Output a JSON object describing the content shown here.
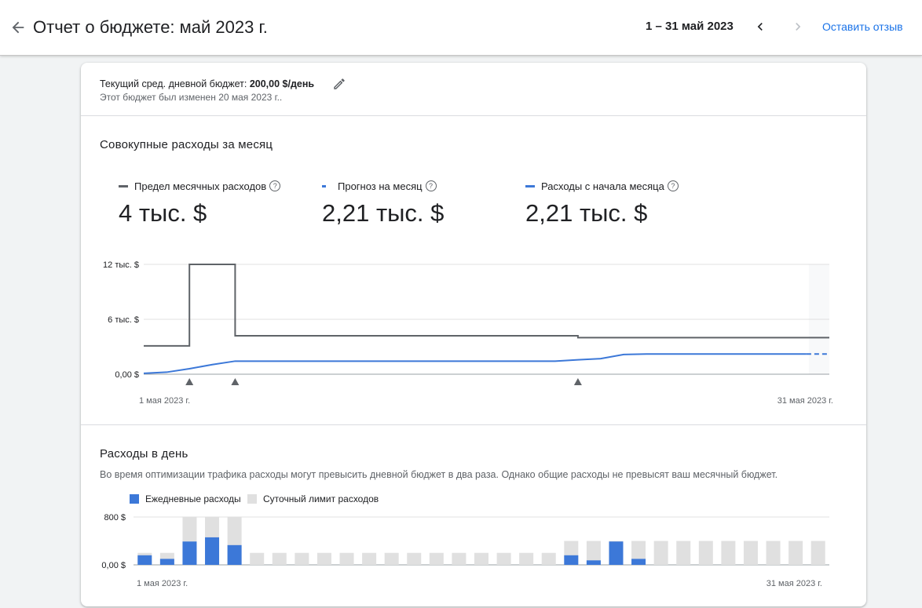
{
  "header": {
    "title": "Отчет о бюджете: май 2023 г.",
    "date_range": "1 – 31 май 2023",
    "feedback_label": "Оставить отзыв",
    "back_icon": "arrow-left-icon",
    "prev_icon": "chevron-left-icon",
    "next_icon": "chevron-right-icon"
  },
  "left_edge_glyph": ")",
  "budget": {
    "label": "Текущий сред. дневной бюджет: ",
    "value": "200,00 $/день",
    "changed_note": "Этот бюджет был изменен 20 мая 2023 г..",
    "edit_icon": "pencil-icon"
  },
  "cumulative": {
    "title": "Совокупные расходы за месяц",
    "metrics": [
      {
        "label": "Предел месячных расходов",
        "value": "4 тыс. $",
        "color": "#5f6368",
        "style": "solid"
      },
      {
        "label": "Прогноз на месяц",
        "value": "2,21 тыс. $",
        "color": "#3c78d8",
        "style": "dash"
      },
      {
        "label": "Расходы с начала месяца",
        "value": "2,21 тыс. $",
        "color": "#3c78d8",
        "style": "solid"
      }
    ]
  },
  "daily": {
    "title": "Расходы в день",
    "description": "Во время оптимизации трафика расходы могут превысить дневной бюджет в два раза. Однако общие расходы не превысят ваш месячный бюджет.",
    "legend": [
      {
        "label": "Ежедневные расходы",
        "color": "#3c78d8"
      },
      {
        "label": "Суточный лимит расходов",
        "color": "#e0e0e0"
      }
    ]
  },
  "colors": {
    "limit_line": "#5f6368",
    "spend_line": "#3c78d8",
    "limit_bar": "#e0e0e0",
    "spend_bar": "#3c78d8",
    "link": "#1a73e8"
  },
  "chart_data": [
    {
      "type": "line",
      "title": "Совокупные расходы за месяц",
      "x_start_label": "1 мая 2023 г.",
      "x_end_label": "31 мая 2023 г.",
      "y_tick_labels": [
        "0,00 $",
        "6 тыс. $",
        "12 тыс. $"
      ],
      "y_ticks": [
        0,
        6000,
        12000
      ],
      "ylim": [
        0,
        12000
      ],
      "days": [
        1,
        2,
        3,
        4,
        5,
        6,
        7,
        8,
        9,
        10,
        11,
        12,
        13,
        14,
        15,
        16,
        17,
        18,
        19,
        20,
        21,
        22,
        23,
        24,
        25,
        26,
        27,
        28,
        29,
        30,
        31
      ],
      "series": [
        {
          "name": "Предел месячных расходов",
          "step": true,
          "values": [
            3100,
            3100,
            12000,
            12000,
            4200,
            4200,
            4200,
            4200,
            4200,
            4200,
            4200,
            4200,
            4200,
            4200,
            4200,
            4200,
            4200,
            4200,
            4200,
            4000,
            4000,
            4000,
            4000,
            4000,
            4000,
            4000,
            4000,
            4000,
            4000,
            4000,
            4000
          ]
        },
        {
          "name": "Расходы с начала месяца",
          "values": [
            100,
            220,
            600,
            1050,
            1430,
            1430,
            1430,
            1430,
            1430,
            1430,
            1430,
            1430,
            1430,
            1430,
            1430,
            1430,
            1430,
            1430,
            1430,
            1570,
            1700,
            2150,
            2210,
            2210,
            2210,
            2210,
            2210,
            2210,
            2210,
            2210
          ]
        },
        {
          "name": "Прогноз на месяц",
          "dashed": true,
          "values": [
            null,
            null,
            null,
            null,
            null,
            null,
            null,
            null,
            null,
            null,
            null,
            null,
            null,
            null,
            null,
            null,
            null,
            null,
            null,
            null,
            null,
            null,
            null,
            null,
            null,
            null,
            null,
            null,
            null,
            2210,
            2210
          ]
        }
      ],
      "change_markers": [
        3,
        5,
        20
      ],
      "grid": true
    },
    {
      "type": "bar",
      "title": "Расходы в день",
      "x_start_label": "1 мая 2023 г.",
      "x_end_label": "31 мая 2023 г.",
      "y_tick_labels": [
        "0,00 $",
        "800 $"
      ],
      "y_ticks": [
        0,
        800
      ],
      "ylim": [
        0,
        800
      ],
      "categories": [
        1,
        2,
        3,
        4,
        5,
        6,
        7,
        8,
        9,
        10,
        11,
        12,
        13,
        14,
        15,
        16,
        17,
        18,
        19,
        20,
        21,
        22,
        23,
        24,
        25,
        26,
        27,
        28,
        29,
        30,
        31
      ],
      "series": [
        {
          "name": "Ежедневные расходы",
          "values": [
            160,
            100,
            390,
            460,
            330,
            0,
            0,
            0,
            0,
            0,
            0,
            0,
            0,
            0,
            0,
            0,
            0,
            0,
            0,
            160,
            75,
            390,
            100,
            0,
            0,
            0,
            0,
            0,
            0,
            0,
            0
          ]
        },
        {
          "name": "Суточный лимит расходов",
          "values": [
            200,
            200,
            800,
            800,
            800,
            200,
            200,
            200,
            200,
            200,
            200,
            200,
            200,
            200,
            200,
            200,
            200,
            200,
            200,
            400,
            400,
            400,
            400,
            400,
            400,
            400,
            400,
            400,
            400,
            400,
            400
          ]
        }
      ],
      "grid": true
    }
  ]
}
